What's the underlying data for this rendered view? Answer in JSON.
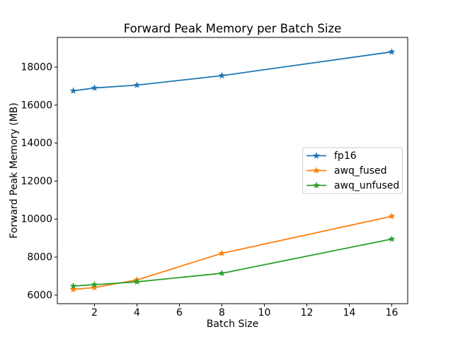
{
  "figure": {
    "background": "#ffffff"
  },
  "chart_data": {
    "type": "line",
    "title": "Forward Peak Memory per Batch Size",
    "xlabel": "Batch Size",
    "ylabel": "Forward Peak Memory (MB)",
    "x": [
      1,
      2,
      4,
      8,
      16
    ],
    "series": [
      {
        "name": "fp16",
        "color": "#1f77b4",
        "marker": "star",
        "values": [
          16750,
          16900,
          17050,
          17550,
          18800
        ]
      },
      {
        "name": "awq_fused",
        "color": "#ff7f0e",
        "marker": "star",
        "values": [
          6300,
          6400,
          6800,
          8200,
          10150
        ]
      },
      {
        "name": "awq_unfused",
        "color": "#2ca02c",
        "marker": "star",
        "values": [
          6480,
          6550,
          6700,
          7150,
          8950
        ]
      }
    ],
    "xticks": [
      2,
      4,
      6,
      8,
      10,
      12,
      14,
      16
    ],
    "yticks": [
      6000,
      8000,
      10000,
      12000,
      14000,
      16000,
      18000
    ],
    "xlim": [
      0.25,
      16.75
    ],
    "ylim": [
      5550,
      19560
    ],
    "grid": false,
    "legend": {
      "position": "center right",
      "entries": [
        "fp16",
        "awq_fused",
        "awq_unfused"
      ],
      "background": "#ffffff",
      "border_color": "#cccccc"
    },
    "axis_color": "#000000",
    "text_color": "#000000"
  }
}
